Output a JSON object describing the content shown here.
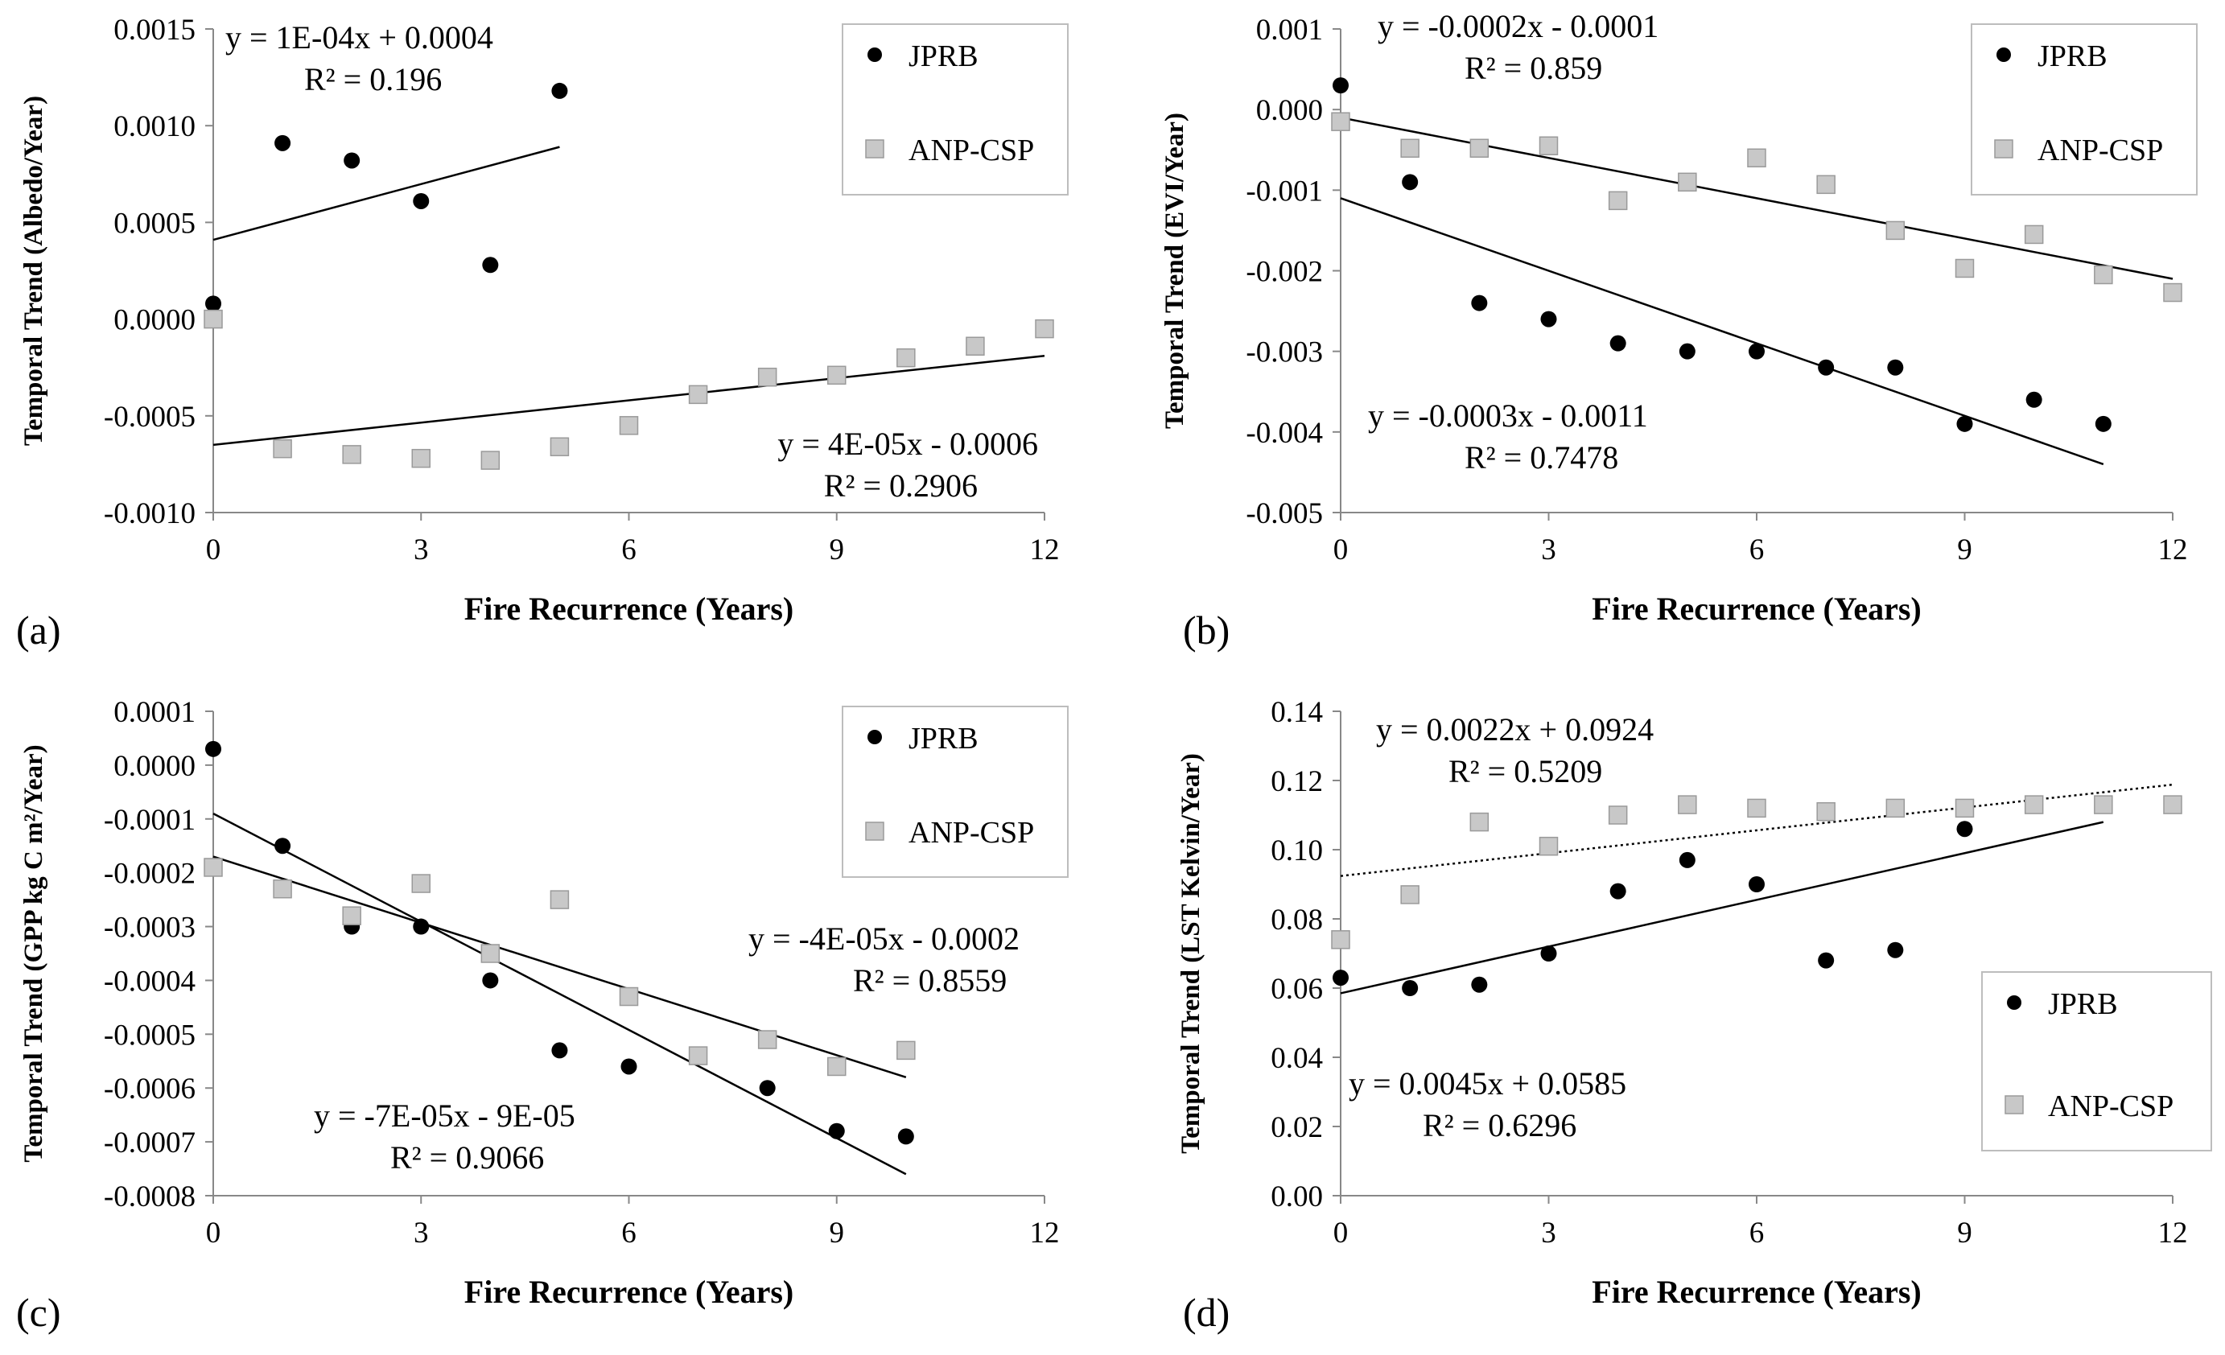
{
  "chart_data": [
    {
      "type": "scatter",
      "panel_label": "(a)",
      "title": "",
      "xlabel": "Fire Recurrence (Years)",
      "ylabel": "Temporal  Trend (Albedo/Year)",
      "xlim": [
        0,
        12
      ],
      "ylim": [
        -0.001,
        0.0015
      ],
      "xticks": [
        0,
        3,
        6,
        9,
        12
      ],
      "xtick_labels": [
        "0",
        "3",
        "6",
        "9",
        "12"
      ],
      "yticks": [
        0.0015,
        0.001,
        0.0005,
        0,
        -0.0005,
        -0.001
      ],
      "ytick_labels": [
        "0.0015",
        "0.0010",
        "0.0005",
        "0.0000",
        "-0.0005",
        "-0.0010"
      ],
      "legend": {
        "position": "top-right",
        "entries": [
          "JPRB",
          "ANP-CSP"
        ]
      },
      "series": [
        {
          "name": "JPRB",
          "marker": "circle",
          "color": "#000000",
          "x": [
            0,
            1,
            2,
            3,
            4,
            5
          ],
          "y": [
            8e-05,
            0.00091,
            0.00082,
            0.00061,
            0.00028,
            0.00118
          ],
          "trendline": {
            "x0": 0,
            "x1": 5,
            "y0": 0.00041,
            "y1": 0.00089,
            "style": "solid"
          },
          "equation": "y = 1E-04x + 0.0004",
          "r2": "R² = 0.196"
        },
        {
          "name": "ANP-CSP",
          "marker": "square",
          "color": "#c8c8c8",
          "x": [
            0,
            1,
            2,
            3,
            4,
            5,
            6,
            7,
            8,
            9,
            10,
            11,
            12
          ],
          "y": [
            0.0,
            -0.00067,
            -0.0007,
            -0.00072,
            -0.00073,
            -0.00066,
            -0.00055,
            -0.00039,
            -0.0003,
            -0.00029,
            -0.0002,
            -0.00014,
            -5e-05
          ],
          "trendline": {
            "x0": 0,
            "x1": 12,
            "y0": -0.00065,
            "y1": -0.00019,
            "style": "solid"
          },
          "equation": "y = 4E-05x - 0.0006",
          "r2": "R² = 0.2906"
        }
      ]
    },
    {
      "type": "scatter",
      "panel_label": "(b)",
      "title": "",
      "xlabel": "Fire Recurrence (Years)",
      "ylabel": "Temporal  Trend (EVI/Year)",
      "xlim": [
        0,
        12
      ],
      "ylim": [
        -0.005,
        0.001
      ],
      "xticks": [
        0,
        3,
        6,
        9,
        12
      ],
      "xtick_labels": [
        "0",
        "3",
        "6",
        "9",
        "12"
      ],
      "yticks": [
        0.001,
        0,
        -0.001,
        -0.002,
        -0.003,
        -0.004,
        -0.005
      ],
      "ytick_labels": [
        "0.001",
        "0.000",
        "-0.001",
        "-0.002",
        "-0.003",
        "-0.004",
        "-0.005"
      ],
      "legend": {
        "position": "top-right",
        "entries": [
          "JPRB",
          "ANP-CSP"
        ]
      },
      "series": [
        {
          "name": "JPRB",
          "marker": "circle",
          "color": "#000000",
          "x": [
            0,
            1,
            2,
            3,
            4,
            5,
            6,
            7,
            8,
            9,
            10,
            11
          ],
          "y": [
            0.0003,
            -0.0009,
            -0.0024,
            -0.0026,
            -0.0029,
            -0.003,
            -0.003,
            -0.0032,
            -0.0032,
            -0.0039,
            -0.0036,
            -0.0039
          ],
          "trendline": {
            "x0": 0,
            "x1": 11,
            "y0": -0.0011,
            "y1": -0.0044,
            "style": "solid"
          },
          "equation": "y = -0.0003x - 0.0011",
          "r2": "R² = 0.7478"
        },
        {
          "name": "ANP-CSP",
          "marker": "square",
          "color": "#c8c8c8",
          "x": [
            0,
            1,
            2,
            3,
            4,
            5,
            6,
            7,
            8,
            9,
            10,
            11,
            12
          ],
          "y": [
            -0.00015,
            -0.00048,
            -0.00048,
            -0.00045,
            -0.00113,
            -0.0009,
            -0.0006,
            -0.00093,
            -0.0015,
            -0.00197,
            -0.00155,
            -0.00205,
            -0.00227
          ],
          "trendline": {
            "x0": 0,
            "x1": 12,
            "y0": -0.0001,
            "y1": -0.0021,
            "style": "solid"
          },
          "equation": "y = -0.0002x - 0.0001",
          "r2": "R² = 0.859"
        }
      ]
    },
    {
      "type": "scatter",
      "panel_label": "(c)",
      "title": "",
      "xlabel": "Fire Recurrence (Years)",
      "ylabel": "Temporal  Trend (GPP kg C m²/Year)",
      "xlim": [
        0,
        12
      ],
      "ylim": [
        -0.0008,
        0.0001
      ],
      "xticks": [
        0,
        3,
        6,
        9,
        12
      ],
      "xtick_labels": [
        "0",
        "3",
        "6",
        "9",
        "12"
      ],
      "yticks": [
        0.0001,
        0,
        -0.0001,
        -0.0002,
        -0.0003,
        -0.0004,
        -0.0005,
        -0.0006,
        -0.0007,
        -0.0008
      ],
      "ytick_labels": [
        "0.0001",
        "0.0000",
        "-0.0001",
        "-0.0002",
        "-0.0003",
        "-0.0004",
        "-0.0005",
        "-0.0006",
        "-0.0007",
        "-0.0008"
      ],
      "legend": {
        "position": "top-right",
        "entries": [
          "JPRB",
          "ANP-CSP"
        ]
      },
      "series": [
        {
          "name": "JPRB",
          "marker": "circle",
          "color": "#000000",
          "x": [
            0,
            1,
            2,
            3,
            4,
            5,
            6,
            8,
            9,
            10
          ],
          "y": [
            3e-05,
            -0.00015,
            -0.0003,
            -0.0003,
            -0.0004,
            -0.00053,
            -0.00056,
            -0.0006,
            -0.00068,
            -0.00069
          ],
          "trendline": {
            "x0": 0,
            "x1": 10,
            "y0": -9e-05,
            "y1": -0.00076,
            "style": "solid"
          },
          "equation": "y = -7E-05x - 9E-05",
          "r2": "R² = 0.9066"
        },
        {
          "name": "ANP-CSP",
          "marker": "square",
          "color": "#c8c8c8",
          "x": [
            0,
            1,
            2,
            3,
            4,
            5,
            6,
            7,
            8,
            9,
            10
          ],
          "y": [
            -0.00019,
            -0.00023,
            -0.00028,
            -0.00022,
            -0.00035,
            -0.00025,
            -0.00043,
            -0.00054,
            -0.00051,
            -0.00056,
            -0.00053
          ],
          "trendline": {
            "x0": 0,
            "x1": 10,
            "y0": -0.00017,
            "y1": -0.00058,
            "style": "solid"
          },
          "equation": "y = -4E-05x - 0.0002",
          "r2": "R² = 0.8559"
        }
      ]
    },
    {
      "type": "scatter",
      "panel_label": "(d)",
      "title": "",
      "xlabel": "Fire Recurrence (Years)",
      "ylabel": "Temporal  Trend (LST Kelvin/Year)",
      "xlim": [
        0,
        12
      ],
      "ylim": [
        0,
        0.14
      ],
      "xticks": [
        0,
        3,
        6,
        9,
        12
      ],
      "xtick_labels": [
        "0",
        "3",
        "6",
        "9",
        "12"
      ],
      "yticks": [
        0.14,
        0.12,
        0.1,
        0.08,
        0.06,
        0.04,
        0.02,
        0
      ],
      "ytick_labels": [
        "0.14",
        "0.12",
        "0.10",
        "0.08",
        "0.06",
        "0.04",
        "0.02",
        "0.00"
      ],
      "legend": {
        "position": "bottom-right",
        "entries": [
          "JPRB",
          "ANP-CSP"
        ]
      },
      "series": [
        {
          "name": "JPRB",
          "marker": "circle",
          "color": "#000000",
          "x": [
            0,
            1,
            2,
            3,
            4,
            5,
            6,
            7,
            8,
            9
          ],
          "y": [
            0.063,
            0.06,
            0.061,
            0.07,
            0.088,
            0.097,
            0.09,
            0.068,
            0.071,
            0.106
          ],
          "trendline": {
            "x0": 0,
            "x1": 11,
            "y0": 0.0585,
            "y1": 0.108,
            "style": "solid"
          },
          "equation": "y = 0.0045x + 0.0585",
          "r2": "R² = 0.6296"
        },
        {
          "name": "ANP-CSP",
          "marker": "square",
          "color": "#c8c8c8",
          "x": [
            0,
            1,
            2,
            3,
            4,
            5,
            6,
            7,
            8,
            9,
            10,
            11,
            12
          ],
          "y": [
            0.074,
            0.087,
            0.108,
            0.101,
            0.11,
            0.113,
            0.112,
            0.111,
            0.112,
            0.112,
            0.113,
            0.113,
            0.113
          ],
          "trendline": {
            "x0": 0,
            "x1": 12,
            "y0": 0.0924,
            "y1": 0.1188,
            "style": "dotted"
          },
          "equation": "y = 0.0022x + 0.0924",
          "r2": "R² = 0.5209"
        }
      ]
    }
  ]
}
